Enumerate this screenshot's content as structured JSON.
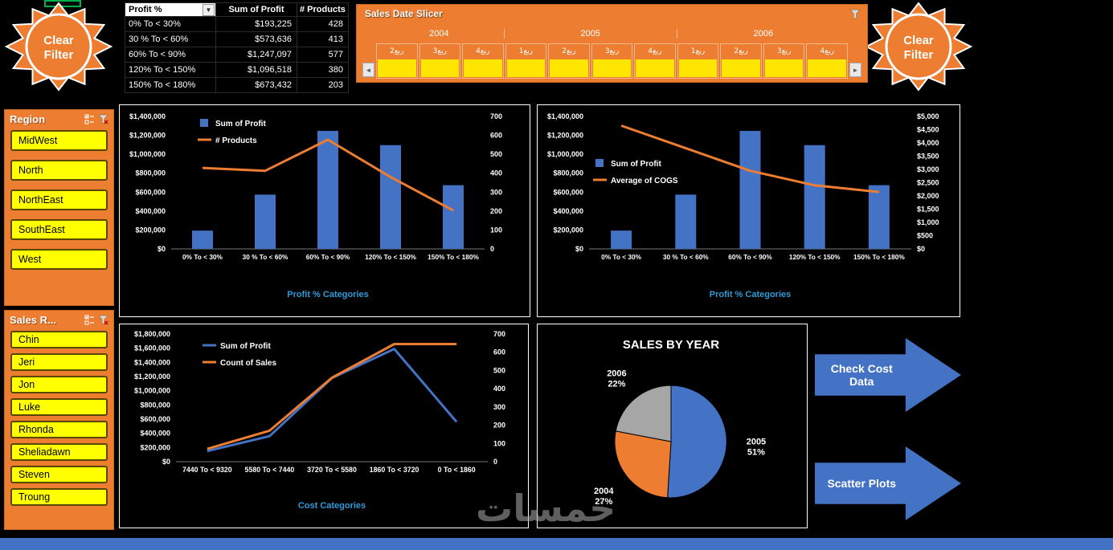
{
  "colors": {
    "accent_orange": "#ED7D31",
    "selection_yellow": "#FFE600",
    "item_yellow": "#FFFF00",
    "bar_blue": "#4472C4",
    "line_orange": "#ED7D31",
    "pie_gray": "#A6A6A6",
    "axis_title_blue": "#2E9BD8",
    "bottom_bar_blue": "#4472C4",
    "active_cell_green": "#00B050"
  },
  "icons": {
    "dropdown": "▼",
    "scroll_left": "◄",
    "scroll_right": "►"
  },
  "clear_filter": {
    "line1": "Clear",
    "line2": "Filter"
  },
  "pivot_table": {
    "columns": [
      "Profit %",
      "Sum of Profit",
      "# Products"
    ],
    "rows": [
      {
        "category": "0% To < 30%",
        "profit": "$193,225",
        "products": "428"
      },
      {
        "category": "30 % To < 60%",
        "profit": "$573,636",
        "products": "413"
      },
      {
        "category": "60% To < 90%",
        "profit": "$1,247,097",
        "products": "577"
      },
      {
        "category": "120% To < 150%",
        "profit": "$1,096,518",
        "products": "380"
      },
      {
        "category": "150% To < 180%",
        "profit": "$673,432",
        "products": "203"
      }
    ]
  },
  "date_slicer": {
    "title": "Sales Date Slicer",
    "years": [
      {
        "label": "2004",
        "quarters": [
          "ربع2",
          "ربع3",
          "ربع4"
        ]
      },
      {
        "label": "2005",
        "quarters": [
          "ربع1",
          "ربع2",
          "ربع3",
          "ربع4"
        ]
      },
      {
        "label": "2006",
        "quarters": [
          "ربع1",
          "ربع2",
          "ربع3",
          "ربع4"
        ]
      }
    ]
  },
  "region_slicer": {
    "title": "Region",
    "items": [
      "MidWest",
      "North",
      "NorthEast",
      "SouthEast",
      "West"
    ]
  },
  "salesrep_slicer": {
    "title": "Sales R...",
    "items": [
      "Chin",
      "Jeri",
      "Jon",
      "Luke",
      "Rhonda",
      "Sheliadawn",
      "Steven",
      "Troung"
    ]
  },
  "action_arrows": [
    {
      "label": "Check Cost Data"
    },
    {
      "label": "Scatter Plots"
    }
  ],
  "watermark": "خمسات",
  "chart_data": [
    {
      "id": "profit-vs-products",
      "type": "bar",
      "subtype": "combo-bar-line",
      "categories": [
        "0% To < 30%",
        "30 % To < 60%",
        "60% To < 90%",
        "120% To < 150%",
        "150% To < 180%"
      ],
      "series": [
        {
          "name": "Sum of Profit",
          "kind": "bar",
          "axis": "left",
          "color": "#4472C4",
          "values": [
            193225,
            573636,
            1247097,
            1096518,
            673432
          ]
        },
        {
          "name": "# Products",
          "kind": "line",
          "axis": "right",
          "color": "#ED7D31",
          "values": [
            428,
            413,
            577,
            380,
            203
          ]
        }
      ],
      "left_axis": {
        "min": 0,
        "max": 1400000,
        "step": 200000,
        "format": "usd"
      },
      "right_axis": {
        "min": 0,
        "max": 700,
        "step": 100,
        "format": "plain"
      },
      "xlabel": "Profit % Categories",
      "legend_position": "inside-top-left",
      "grid": false
    },
    {
      "id": "profit-vs-cogs",
      "type": "bar",
      "subtype": "combo-bar-line",
      "categories": [
        "0% To < 30%",
        "30 % To < 60%",
        "60% To < 90%",
        "120% To < 150%",
        "150% To < 180%"
      ],
      "series": [
        {
          "name": "Sum of Profit",
          "kind": "bar",
          "axis": "left",
          "color": "#4472C4",
          "values": [
            193225,
            573636,
            1247097,
            1096518,
            673432
          ]
        },
        {
          "name": "Average of COGS",
          "kind": "line",
          "axis": "right",
          "color": "#ED7D31",
          "values": [
            4650,
            3800,
            2950,
            2400,
            2150
          ]
        }
      ],
      "left_axis": {
        "min": 0,
        "max": 1400000,
        "step": 200000,
        "format": "usd"
      },
      "right_axis": {
        "min": 0,
        "max": 5000,
        "step": 500,
        "format": "usd"
      },
      "xlabel": "Profit % Categories",
      "legend_position": "inside-middle-left",
      "grid": false
    },
    {
      "id": "cost-categories-lines",
      "type": "line",
      "categories": [
        "7440 To < 9320",
        "5580 To < 7440",
        "3720 To < 5580",
        "1860 To < 3720",
        "0 To < 1860"
      ],
      "series": [
        {
          "name": "Sum of Profit",
          "kind": "line",
          "axis": "left",
          "color": "#4472C4",
          "values": [
            150000,
            360000,
            1180000,
            1590000,
            560000
          ]
        },
        {
          "name": "Count of Sales",
          "kind": "line",
          "axis": "right",
          "color": "#ED7D31",
          "values": [
            70,
            170,
            460,
            645,
            645
          ]
        }
      ],
      "left_axis": {
        "min": 0,
        "max": 1800000,
        "step": 200000,
        "format": "usd"
      },
      "right_axis": {
        "min": 0,
        "max": 700,
        "step": 100,
        "format": "plain"
      },
      "xlabel": "Cost Categories",
      "legend_position": "inside-top-left",
      "grid": false
    },
    {
      "id": "sales-by-year",
      "type": "pie",
      "title": "SALES BY YEAR",
      "start_angle_deg": -90,
      "direction": "clockwise",
      "slices": [
        {
          "label": "2005",
          "value": 51,
          "color": "#4472C4"
        },
        {
          "label": "2004",
          "value": 27,
          "color": "#ED7D31"
        },
        {
          "label": "2006",
          "value": 22,
          "color": "#A6A6A6"
        }
      ]
    }
  ]
}
